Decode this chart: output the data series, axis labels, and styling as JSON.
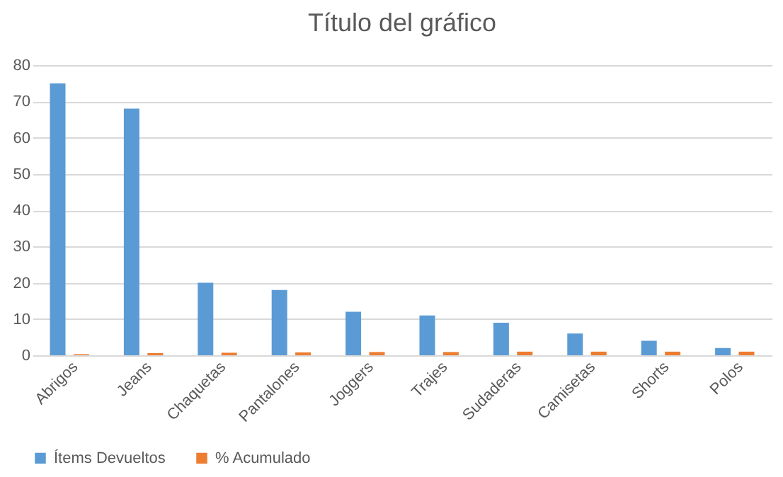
{
  "chart_data": {
    "type": "bar",
    "title": "Título del gráfico",
    "categories": [
      "Abrigos",
      "Jeans",
      "Chaquetas",
      "Pantalones",
      "Joggers",
      "Trajes",
      "Sudaderas",
      "Camisetas",
      "Shorts",
      "Polos"
    ],
    "series": [
      {
        "name": "Ítems Devueltos",
        "color": "#5b9bd5",
        "values": [
          75,
          68,
          20,
          18,
          12,
          11,
          9,
          6,
          4,
          2
        ]
      },
      {
        "name": "% Acumulado",
        "color": "#ed7d31",
        "values": [
          0.3,
          0.6,
          0.7,
          0.8,
          0.9,
          0.9,
          1,
          1,
          1,
          1
        ]
      }
    ],
    "ylim": [
      0,
      80
    ],
    "yticks": [
      0,
      10,
      20,
      30,
      40,
      50,
      60,
      70,
      80
    ],
    "grid": "y",
    "legend": "bottom"
  }
}
